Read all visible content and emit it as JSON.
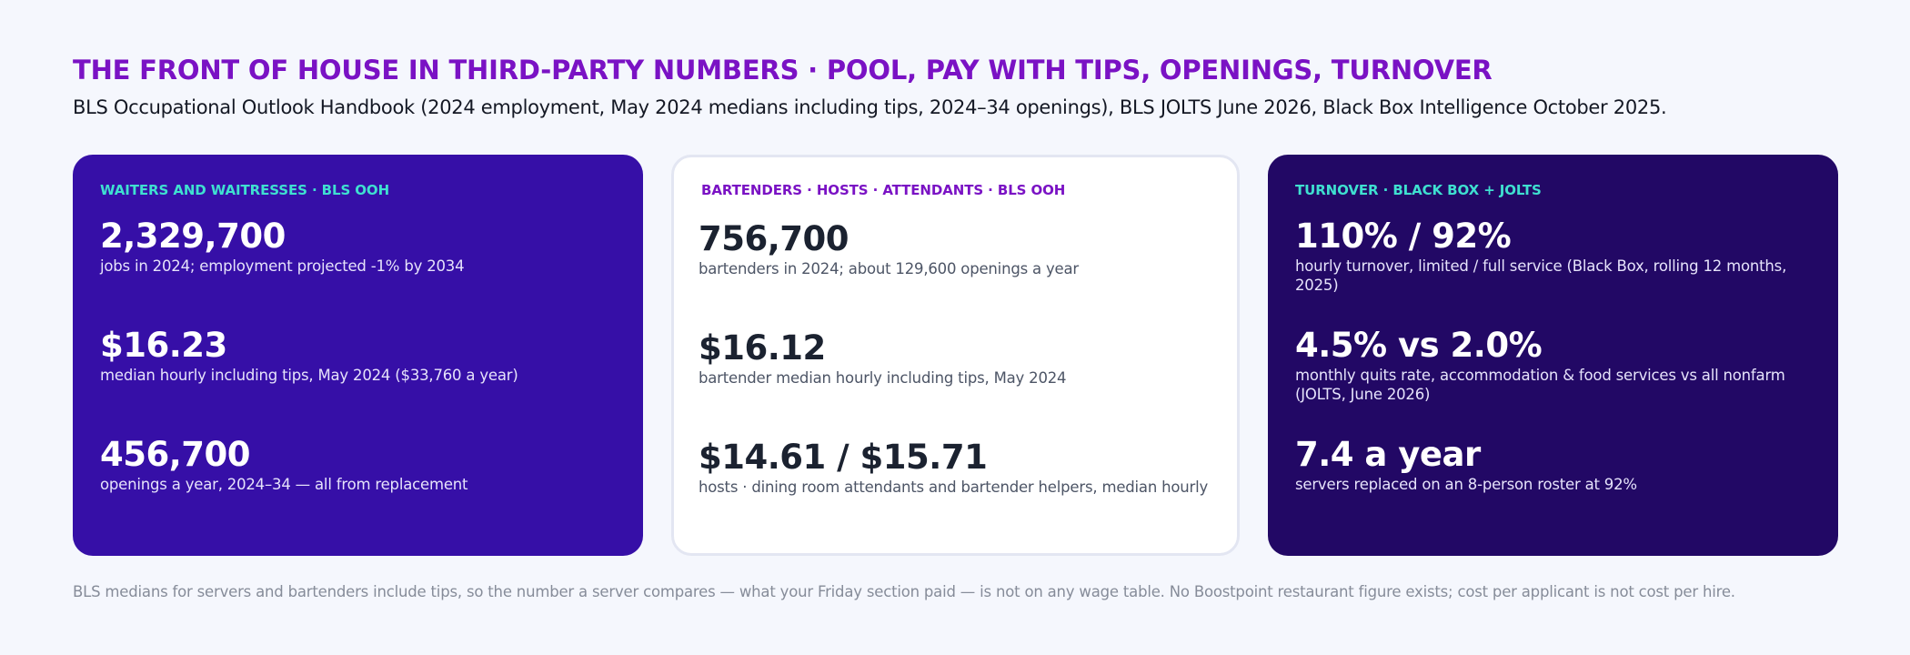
{
  "title": "THE FRONT OF HOUSE IN THIRD-PARTY NUMBERS · POOL, PAY WITH TIPS, OPENINGS, TURNOVER",
  "subtitle": "BLS Occupational Outlook Handbook (2024 employment, May 2024 medians including tips, 2024–34 openings), BLS JOLTS June 2026, Black Box Intelligence October 2025.",
  "cards": [
    {
      "heading": "WAITERS AND WAITRESSES · BLS OOH",
      "stats": [
        {
          "value": "2,329,700",
          "caption": "jobs in 2024; employment projected -1% by 2034"
        },
        {
          "value": "$16.23",
          "caption": "median hourly including tips, May 2024 ($33,760 a year)"
        },
        {
          "value": "456,700",
          "caption": "openings a year, 2024–34 — all from replacement"
        }
      ]
    },
    {
      "heading": "BARTENDERS · HOSTS · ATTENDANTS · BLS OOH",
      "stats": [
        {
          "value": "756,700",
          "caption": "bartenders in 2024; about 129,600 openings a year"
        },
        {
          "value": "$16.12",
          "caption": "bartender median hourly including tips, May 2024"
        },
        {
          "value": "$14.61 / $15.71",
          "caption": "hosts · dining room attendants and bartender helpers, median hourly"
        }
      ]
    },
    {
      "heading": "TURNOVER · BLACK BOX + JOLTS",
      "stats": [
        {
          "value": "110% / 92%",
          "caption": "hourly turnover, limited / full service (Black Box, rolling 12 months, 2025)"
        },
        {
          "value": "4.5% vs 2.0%",
          "caption": "monthly quits rate, accommodation & food services vs all nonfarm (JOLTS, June 2026)"
        },
        {
          "value": "7.4 a year",
          "caption": "servers replaced on an 8-person roster at 92%"
        }
      ]
    }
  ],
  "footnote": "BLS medians for servers and bartenders include tips, so the number a server compares — what your Friday section paid — is not on any wage table. No Boostpoint restaurant figure exists; cost per applicant is not cost per hire.",
  "colors": {
    "title": "#7a12c4",
    "card1_bg": "#360fa7",
    "card2_bg": "#ffffff",
    "card3_bg": "#220865",
    "accent_teal": "#3fe0d0",
    "page_bg": "#f5f7fd"
  }
}
